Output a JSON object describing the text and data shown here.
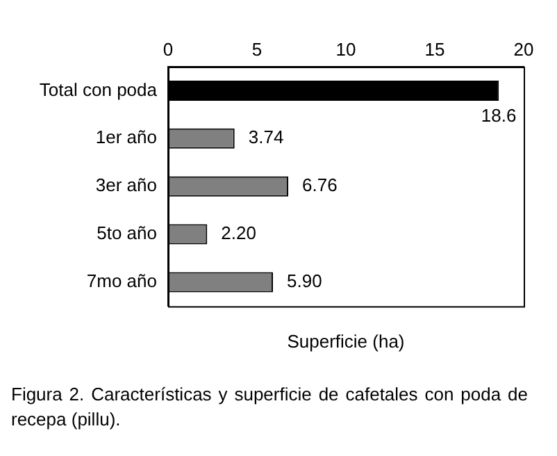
{
  "chart_data": {
    "type": "bar",
    "orientation": "horizontal",
    "categories": [
      "Total con poda",
      "1er año",
      "3er año",
      "5to año",
      "7mo año"
    ],
    "values": [
      18.6,
      3.74,
      6.76,
      2.2,
      5.9
    ],
    "value_labels": [
      "18.6",
      "3.74",
      "6.76",
      "2.20",
      "5.90"
    ],
    "colors": [
      "#000000",
      "#808080",
      "#808080",
      "#808080",
      "#808080"
    ],
    "xlim": [
      0,
      20
    ],
    "xticks": [
      0,
      5,
      10,
      15,
      20
    ],
    "xlabel": "Superficie (ha)",
    "grid": false,
    "legend": false,
    "annotations": [
      "Figura 2. Características y superficie de cafetales con poda de recepa (pillu)."
    ]
  }
}
